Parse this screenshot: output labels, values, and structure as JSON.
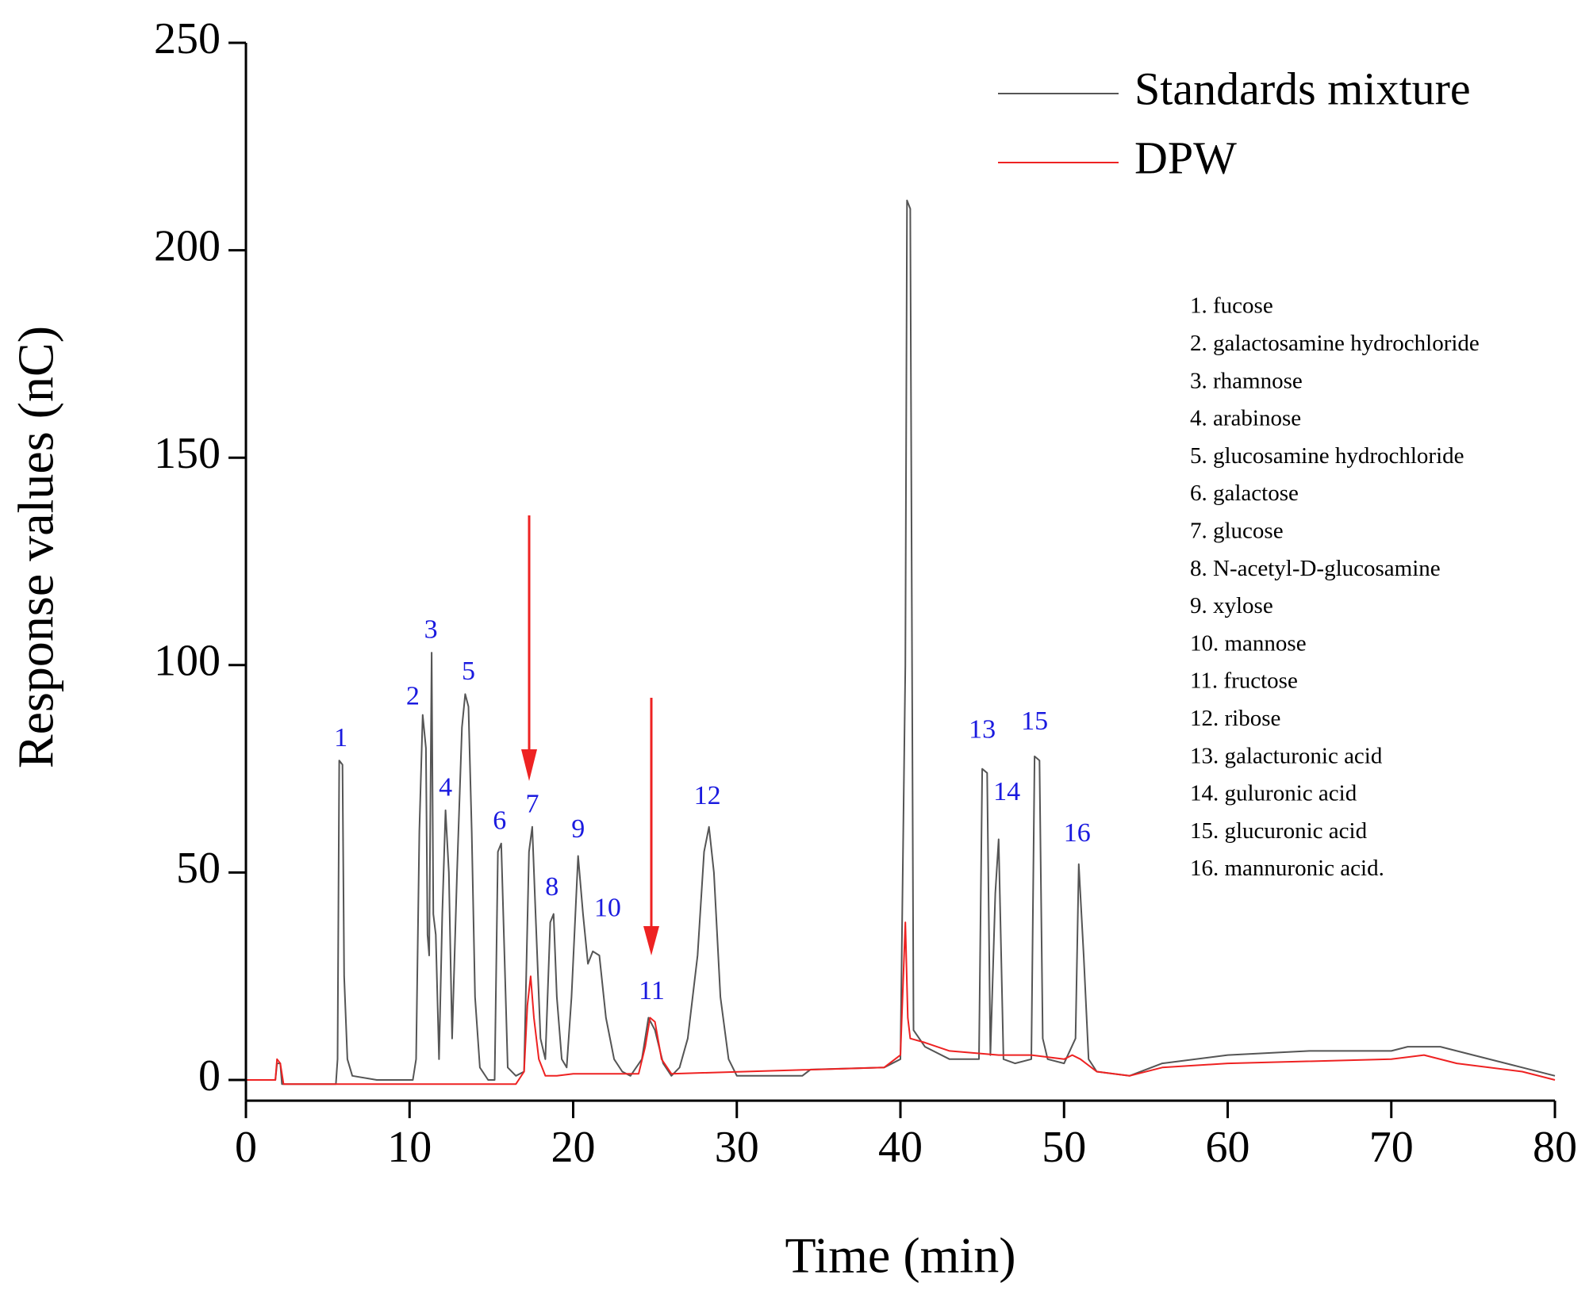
{
  "chart_data": {
    "type": "line",
    "xlabel": "Time (min)",
    "ylabel": "Response values (nC)",
    "xlim": [
      0,
      80
    ],
    "xticks": [
      0,
      10,
      20,
      30,
      40,
      50,
      60,
      70,
      80
    ],
    "ylim": [
      -5,
      250
    ],
    "yticks": [
      0,
      50,
      100,
      150,
      200,
      250
    ],
    "legend": "upper right",
    "series": [
      {
        "name": "Standards mixture",
        "color": "#555555",
        "x": [
          0,
          1.8,
          1.9,
          2.1,
          2.2,
          5.5,
          5.6,
          5.7,
          5.9,
          6.0,
          6.2,
          6.5,
          8,
          10.2,
          10.4,
          10.6,
          10.8,
          11.0,
          11.1,
          11.2,
          11.35,
          11.45,
          11.6,
          11.8,
          12.0,
          12.2,
          12.4,
          12.6,
          12.9,
          13.2,
          13.4,
          13.6,
          13.8,
          14.0,
          14.3,
          14.8,
          15.2,
          15.4,
          15.6,
          15.8,
          16.0,
          16.5,
          17.0,
          17.3,
          17.5,
          17.7,
          18.0,
          18.3,
          18.6,
          18.8,
          19.0,
          19.3,
          19.6,
          19.9,
          20.3,
          20.6,
          20.9,
          21.2,
          21.6,
          22.0,
          22.5,
          23,
          23.5,
          24.2,
          24.6,
          25,
          25.5,
          26,
          26.5,
          27,
          27.6,
          28.0,
          28.3,
          28.6,
          29,
          29.5,
          30,
          34,
          34.5,
          39,
          40,
          40.3,
          40.4,
          40.6,
          40.8,
          41.5,
          43,
          44.8,
          45.0,
          45.3,
          45.5,
          45.8,
          46.0,
          46.3,
          47,
          48.0,
          48.2,
          48.5,
          48.7,
          49,
          50,
          50.7,
          50.9,
          51.2,
          51.5,
          52,
          54,
          56,
          60,
          65,
          70,
          71,
          73,
          75,
          78,
          80
        ],
        "values": [
          0,
          0,
          4,
          4,
          -1,
          -1,
          5,
          77,
          76,
          25,
          5,
          1,
          0,
          0,
          5,
          60,
          88,
          80,
          35,
          30,
          103,
          40,
          35,
          5,
          40,
          65,
          50,
          10,
          50,
          85,
          93,
          90,
          60,
          20,
          3,
          0,
          0,
          55,
          57,
          30,
          3,
          1,
          2,
          55,
          61,
          40,
          10,
          5,
          38,
          40,
          20,
          5,
          3,
          20,
          54,
          40,
          28,
          31,
          30,
          15,
          5,
          2,
          1,
          5,
          15,
          12,
          4,
          1,
          3,
          10,
          30,
          55,
          61,
          50,
          20,
          5,
          1,
          1,
          2.5,
          3,
          5,
          100,
          212,
          210,
          12,
          8,
          5,
          5,
          75,
          74,
          6,
          45,
          58,
          5,
          4,
          5,
          78,
          77,
          10,
          5,
          4,
          10,
          52,
          30,
          5,
          2,
          1,
          4,
          6,
          7,
          7,
          8,
          8,
          6,
          3,
          1
        ]
      },
      {
        "name": "DPW",
        "color": "#ee2222",
        "x": [
          0,
          1.8,
          1.9,
          2.1,
          2.3,
          16.5,
          17.0,
          17.2,
          17.4,
          17.6,
          17.9,
          18.3,
          19,
          20,
          24,
          24.4,
          24.7,
          25,
          25.4,
          26,
          39,
          40,
          40.3,
          40.45,
          40.6,
          41.5,
          43,
          46,
          48,
          50,
          50.5,
          51,
          52,
          54,
          56,
          60,
          70,
          72,
          74,
          78,
          80
        ],
        "values": [
          0,
          0,
          5,
          4,
          -1,
          -1,
          2,
          18,
          25,
          15,
          5,
          1,
          1,
          1.5,
          1.5,
          8,
          15,
          14,
          5,
          1.5,
          3,
          6,
          38,
          15,
          10,
          9,
          7,
          6,
          6,
          5,
          6,
          5,
          2,
          1,
          3,
          4,
          5,
          6,
          4,
          2,
          0
        ]
      }
    ],
    "peak_labels": [
      "1",
      "2",
      "3",
      "4",
      "5",
      "6",
      "7",
      "8",
      "9",
      "10",
      "11",
      "12",
      "13",
      "14",
      "15",
      "16"
    ],
    "compound_list": [
      "1. fucose",
      "2. galactosamine hydrochloride",
      "3. rhamnose",
      "4. arabinose",
      "5. glucosamine hydrochloride",
      "6. galactose",
      "7. glucose",
      "8. N-acetyl-D-glucosamine",
      "9. xylose",
      "10. mannose",
      "11. fructose",
      "12. ribose",
      "13. galacturonic acid",
      "14. guluronic acid",
      "15. glucuronic acid",
      "16. mannuronic acid."
    ]
  }
}
